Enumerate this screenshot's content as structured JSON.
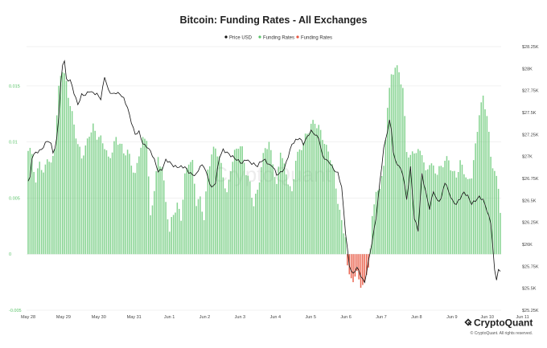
{
  "chart_data": {
    "type": "bar",
    "title": "Bitcoin: Funding Rates - All Exchanges",
    "legend": [
      {
        "label": "Price USD",
        "color": "#111111"
      },
      {
        "label": "Funding Rates",
        "color": "#5cc46b"
      },
      {
        "label": "Funding Rates",
        "color": "#e8553f"
      }
    ],
    "legend_position": "top-center",
    "watermark": "CryptoQuant",
    "brand": "CryptoQuant",
    "copyright": "© CryptoQuant. All rights reserved.",
    "x_ticks": [
      "May 28",
      "May 29",
      "May 30",
      "May 31",
      "Jun 1",
      "Jun 2",
      "Jun 3",
      "Jun 4",
      "Jun 5",
      "Jun 6",
      "Jun 7",
      "Jun 8",
      "Jun 9",
      "Jun 10",
      "Jun 11"
    ],
    "left_axis": {
      "ticks": [
        "0.015",
        "0.01",
        "0.005",
        "0",
        "-0.005"
      ],
      "values": [
        0.015,
        0.01,
        0.005,
        0,
        -0.005
      ],
      "range": [
        -0.005,
        0.0185
      ]
    },
    "right_axis": {
      "ticks": [
        "$28.25K",
        "$28K",
        "$27.75K",
        "$27.5K",
        "$27.25K",
        "$27K",
        "$26.75K",
        "$26.5K",
        "$26.25K",
        "$26K",
        "$25.75K",
        "$25.5K",
        "$25.25K"
      ],
      "values": [
        28250,
        28000,
        27750,
        27500,
        27250,
        27000,
        26750,
        26500,
        26250,
        26000,
        25750,
        25500,
        25250
      ],
      "range": [
        25250,
        28250
      ]
    },
    "funding_rate_keypoints": [
      [
        0,
        0.0092
      ],
      [
        2,
        0.0088
      ],
      [
        4,
        0.006
      ],
      [
        6,
        0.0085
      ],
      [
        8,
        0.0072
      ],
      [
        10,
        0.009
      ],
      [
        12,
        0.0078
      ],
      [
        14,
        0.0095
      ],
      [
        16,
        0.0145
      ],
      [
        17,
        0.016
      ],
      [
        18,
        0.0165
      ],
      [
        19,
        0.016
      ],
      [
        20,
        0.0155
      ],
      [
        22,
        0.0135
      ],
      [
        24,
        0.0115
      ],
      [
        26,
        0.0095
      ],
      [
        28,
        0.0085
      ],
      [
        30,
        0.0095
      ],
      [
        32,
        0.011
      ],
      [
        34,
        0.0115
      ],
      [
        36,
        0.0105
      ],
      [
        38,
        0.01
      ],
      [
        40,
        0.0095
      ],
      [
        42,
        0.0085
      ],
      [
        44,
        0.0095
      ],
      [
        46,
        0.0105
      ],
      [
        48,
        0.0098
      ],
      [
        50,
        0.0088
      ],
      [
        52,
        0.009
      ],
      [
        54,
        0.0082
      ],
      [
        56,
        0.0072
      ],
      [
        58,
        0.0092
      ],
      [
        60,
        0.01
      ],
      [
        62,
        0.0102
      ],
      [
        64,
        0.003
      ],
      [
        66,
        0.006
      ],
      [
        68,
        0.0087
      ],
      [
        70,
        0.008
      ],
      [
        72,
        0.0045
      ],
      [
        74,
        0.002
      ],
      [
        76,
        0.0035
      ],
      [
        78,
        0.0045
      ],
      [
        80,
        0.0035
      ],
      [
        82,
        0.007
      ],
      [
        84,
        0.0082
      ],
      [
        86,
        0.0078
      ],
      [
        88,
        0.0045
      ],
      [
        90,
        0.005
      ],
      [
        92,
        0.0035
      ],
      [
        94,
        0.0075
      ],
      [
        96,
        0.0088
      ],
      [
        98,
        0.0092
      ],
      [
        100,
        0.0085
      ],
      [
        102,
        0.0072
      ],
      [
        104,
        0.0055
      ],
      [
        106,
        0.0078
      ],
      [
        108,
        0.0088
      ],
      [
        110,
        0.0095
      ],
      [
        112,
        0.0092
      ],
      [
        114,
        0.0075
      ],
      [
        116,
        0.0065
      ],
      [
        118,
        0.0045
      ],
      [
        120,
        0.0055
      ],
      [
        122,
        0.0075
      ],
      [
        124,
        0.0095
      ],
      [
        126,
        0.01
      ],
      [
        128,
        0.0085
      ],
      [
        130,
        0.006
      ],
      [
        132,
        0.0092
      ],
      [
        134,
        0.0075
      ],
      [
        136,
        0.0065
      ],
      [
        138,
        0.0055
      ],
      [
        140,
        0.0088
      ],
      [
        142,
        0.0092
      ],
      [
        144,
        0.0098
      ],
      [
        146,
        0.0105
      ],
      [
        148,
        0.0115
      ],
      [
        150,
        0.012
      ],
      [
        152,
        0.0115
      ],
      [
        154,
        0.0105
      ],
      [
        156,
        0.0092
      ],
      [
        158,
        0.0085
      ],
      [
        160,
        0.0072
      ],
      [
        162,
        0.005
      ],
      [
        164,
        0.003
      ],
      [
        166,
        0.0015
      ],
      [
        167,
        -0.001
      ],
      [
        168,
        -0.0018
      ],
      [
        170,
        -0.0025
      ],
      [
        172,
        -0.0015
      ],
      [
        174,
        -0.003
      ],
      [
        176,
        -0.0025
      ],
      [
        178,
        -0.0012
      ],
      [
        179,
        0.0005
      ],
      [
        180,
        0.0035
      ],
      [
        182,
        0.005
      ],
      [
        184,
        0.0062
      ],
      [
        186,
        0.0078
      ],
      [
        188,
        0.0135
      ],
      [
        190,
        0.0158
      ],
      [
        192,
        0.0165
      ],
      [
        194,
        0.016
      ],
      [
        196,
        0.0148
      ],
      [
        198,
        0.0095
      ],
      [
        200,
        0.0088
      ],
      [
        202,
        0.0092
      ],
      [
        204,
        0.0088
      ],
      [
        206,
        0.009
      ],
      [
        208,
        0.0072
      ],
      [
        210,
        0.0085
      ],
      [
        212,
        0.0078
      ],
      [
        214,
        0.0072
      ],
      [
        216,
        0.0075
      ],
      [
        218,
        0.0082
      ],
      [
        220,
        0.0085
      ],
      [
        222,
        0.0075
      ],
      [
        224,
        0.0072
      ],
      [
        226,
        0.008
      ],
      [
        228,
        0.0072
      ],
      [
        230,
        0.0062
      ],
      [
        232,
        0.0072
      ],
      [
        234,
        0.0098
      ],
      [
        236,
        0.0128
      ],
      [
        238,
        0.0138
      ],
      [
        240,
        0.0122
      ],
      [
        242,
        0.0085
      ],
      [
        244,
        0.0075
      ],
      [
        246,
        0.0062
      ],
      [
        247,
        0.0042
      ]
    ],
    "price_keypoints": [
      [
        0,
        26720
      ],
      [
        1,
        26750
      ],
      [
        2,
        26980
      ],
      [
        4,
        27050
      ],
      [
        6,
        27070
      ],
      [
        8,
        27100
      ],
      [
        10,
        27180
      ],
      [
        12,
        27150
      ],
      [
        13,
        27060
      ],
      [
        14,
        27080
      ],
      [
        15,
        27210
      ],
      [
        16,
        27450
      ],
      [
        17,
        27800
      ],
      [
        18,
        28050
      ],
      [
        18.5,
        28180
      ],
      [
        19,
        28100
      ],
      [
        20,
        27880
      ],
      [
        22,
        27860
      ],
      [
        24,
        27720
      ],
      [
        26,
        27600
      ],
      [
        28,
        27700
      ],
      [
        30,
        27690
      ],
      [
        32,
        27750
      ],
      [
        34,
        27730
      ],
      [
        36,
        27700
      ],
      [
        38,
        27650
      ],
      [
        40,
        27920
      ],
      [
        42,
        27750
      ],
      [
        44,
        27700
      ],
      [
        46,
        27730
      ],
      [
        48,
        27720
      ],
      [
        50,
        27650
      ],
      [
        52,
        27550
      ],
      [
        54,
        27400
      ],
      [
        56,
        27250
      ],
      [
        58,
        27270
      ],
      [
        60,
        27150
      ],
      [
        62,
        27120
      ],
      [
        64,
        27050
      ],
      [
        66,
        26960
      ],
      [
        68,
        26840
      ],
      [
        70,
        26850
      ],
      [
        72,
        26950
      ],
      [
        74,
        26940
      ],
      [
        76,
        26900
      ],
      [
        78,
        26870
      ],
      [
        80,
        26880
      ],
      [
        82,
        26890
      ],
      [
        84,
        26820
      ],
      [
        86,
        26780
      ],
      [
        88,
        26800
      ],
      [
        90,
        26900
      ],
      [
        92,
        26880
      ],
      [
        94,
        26760
      ],
      [
        96,
        26650
      ],
      [
        98,
        26700
      ],
      [
        100,
        26980
      ],
      [
        102,
        27080
      ],
      [
        104,
        27050
      ],
      [
        106,
        27000
      ],
      [
        108,
        26980
      ],
      [
        110,
        26960
      ],
      [
        112,
        26920
      ],
      [
        114,
        26960
      ],
      [
        116,
        26940
      ],
      [
        118,
        26920
      ],
      [
        120,
        26880
      ],
      [
        122,
        26950
      ],
      [
        124,
        26970
      ],
      [
        126,
        26900
      ],
      [
        128,
        26880
      ],
      [
        130,
        26800
      ],
      [
        132,
        26820
      ],
      [
        134,
        26850
      ],
      [
        136,
        27000
      ],
      [
        138,
        27150
      ],
      [
        140,
        27180
      ],
      [
        142,
        27200
      ],
      [
        144,
        27150
      ],
      [
        146,
        27230
      ],
      [
        148,
        27280
      ],
      [
        150,
        27250
      ],
      [
        152,
        27220
      ],
      [
        154,
        27000
      ],
      [
        156,
        26950
      ],
      [
        158,
        26930
      ],
      [
        160,
        26850
      ],
      [
        162,
        26800
      ],
      [
        164,
        26650
      ],
      [
        166,
        26150
      ],
      [
        168,
        25750
      ],
      [
        170,
        25650
      ],
      [
        172,
        25750
      ],
      [
        174,
        25650
      ],
      [
        176,
        25550
      ],
      [
        178,
        25800
      ],
      [
        180,
        26050
      ],
      [
        182,
        26300
      ],
      [
        184,
        26700
      ],
      [
        186,
        27100
      ],
      [
        188,
        27300
      ],
      [
        189,
        27400
      ],
      [
        190,
        27300
      ],
      [
        191,
        27050
      ],
      [
        192,
        26950
      ],
      [
        194,
        26900
      ],
      [
        196,
        26800
      ],
      [
        198,
        26500
      ],
      [
        200,
        26880
      ],
      [
        202,
        26300
      ],
      [
        204,
        26150
      ],
      [
        206,
        26800
      ],
      [
        208,
        26600
      ],
      [
        210,
        26400
      ],
      [
        212,
        26600
      ],
      [
        214,
        26500
      ],
      [
        216,
        26520
      ],
      [
        218,
        26700
      ],
      [
        220,
        26600
      ],
      [
        222,
        26500
      ],
      [
        224,
        26450
      ],
      [
        226,
        26520
      ],
      [
        228,
        26600
      ],
      [
        230,
        26550
      ],
      [
        232,
        26450
      ],
      [
        234,
        26500
      ],
      [
        236,
        26550
      ],
      [
        238,
        26500
      ],
      [
        240,
        26380
      ],
      [
        242,
        26250
      ],
      [
        243,
        26000
      ],
      [
        244,
        25700
      ],
      [
        245,
        25600
      ],
      [
        246,
        25700
      ],
      [
        247,
        25680
      ]
    ],
    "bar_count": 248
  }
}
